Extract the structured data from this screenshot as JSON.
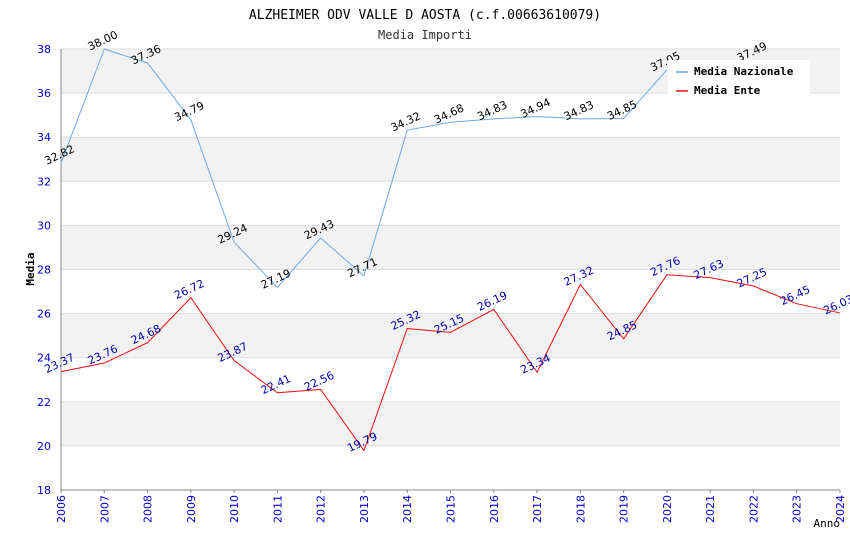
{
  "chart_data": {
    "type": "line",
    "title": "ALZHEIMER ODV VALLE D AOSTA (c.f.00663610079)",
    "subtitle": "Media Importi",
    "xlabel": "Anno",
    "ylabel": "Media",
    "ylim": [
      18,
      38
    ],
    "yticks": [
      "18",
      "20",
      "22",
      "24",
      "26",
      "28",
      "30",
      "32",
      "34",
      "36",
      "38"
    ],
    "categories": [
      "2006",
      "2007",
      "2008",
      "2009",
      "2010",
      "2011",
      "2012",
      "2013",
      "2014",
      "2015",
      "2016",
      "2017",
      "2018",
      "2019",
      "2020",
      "2021",
      "2022",
      "2023",
      "2024"
    ],
    "legend_position": "top-right",
    "series": [
      {
        "name": "Media Nazionale",
        "color": "#6aaae8",
        "label_color": "#000000",
        "values": [
          32.82,
          38.0,
          37.36,
          34.79,
          29.24,
          27.19,
          29.43,
          27.71,
          34.32,
          34.68,
          34.83,
          34.94,
          34.83,
          34.85,
          37.05,
          null,
          37.49,
          null,
          null
        ]
      },
      {
        "name": "Media Ente",
        "color": "#ee1111",
        "label_color": "#0000aa",
        "values": [
          23.37,
          23.76,
          24.68,
          26.72,
          23.87,
          22.41,
          22.56,
          19.79,
          25.32,
          25.15,
          26.19,
          23.34,
          27.32,
          24.85,
          27.76,
          27.63,
          27.25,
          26.45,
          26.03
        ]
      }
    ],
    "grid": true,
    "colors": {
      "band": "#f2f2f2",
      "gridline": "#dddddd",
      "tick_text": "#0000cc"
    }
  }
}
